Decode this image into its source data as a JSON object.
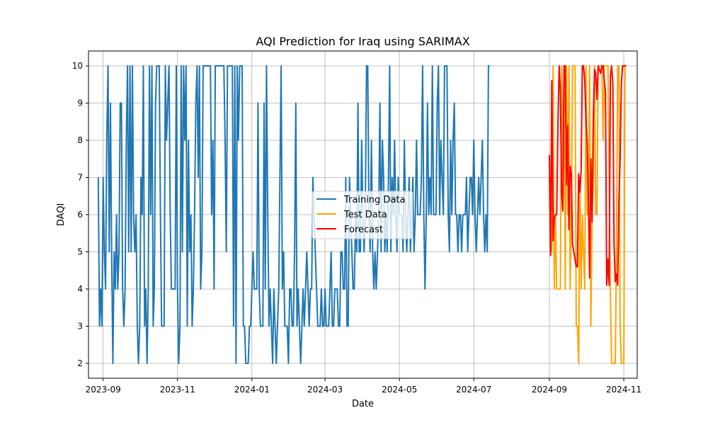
{
  "chart_data": {
    "type": "line",
    "title": "AQI Prediction for Iraq using SARIMAX",
    "xlabel": "Date",
    "ylabel": "DAQI",
    "xlim": [
      "2023-08-20",
      "2024-11-12"
    ],
    "ylim": [
      1.6,
      10.4
    ],
    "x_ticks": [
      "2023-09",
      "2023-11",
      "2024-01",
      "2024-03",
      "2024-05",
      "2024-07",
      "2024-09",
      "2024-11"
    ],
    "y_ticks": [
      2,
      3,
      4,
      5,
      6,
      7,
      8,
      9,
      10
    ],
    "grid": true,
    "legend_position": "center",
    "training_start": "2023-08-28",
    "test_start": "2024-09-01",
    "series": [
      {
        "name": "Training Data",
        "color": "#1f77b4",
        "values": [
          7,
          3,
          4,
          3,
          7,
          5,
          4,
          8,
          10,
          5,
          9,
          5,
          2,
          5,
          4,
          6,
          4,
          5,
          9,
          9,
          4,
          3,
          4,
          8,
          10,
          5,
          10,
          5,
          10,
          6,
          5,
          6,
          3,
          2,
          3,
          7,
          6,
          10,
          3,
          4,
          2,
          4,
          10,
          6,
          10,
          3,
          4,
          9,
          10,
          10,
          10,
          6,
          3,
          3,
          3,
          10,
          8,
          9,
          10,
          6,
          4,
          4,
          4,
          4,
          10,
          4,
          2,
          3,
          10,
          5,
          10,
          8,
          10,
          3,
          8,
          5,
          6,
          3,
          4,
          6,
          9,
          10,
          7,
          10,
          4,
          5,
          10,
          10,
          10,
          10,
          10,
          10,
          10,
          6,
          8,
          4,
          10,
          10,
          10,
          10,
          10,
          10,
          10,
          10,
          8,
          5,
          10,
          10,
          10,
          10,
          10,
          3,
          10,
          2,
          10,
          8,
          10,
          10,
          10,
          3,
          3,
          2,
          2,
          2,
          3,
          3,
          4,
          5,
          4,
          4,
          4,
          9,
          4,
          3,
          3,
          3,
          9,
          4,
          10,
          6,
          3,
          4,
          3,
          2,
          4,
          3,
          2,
          3,
          4,
          7,
          10,
          4,
          5,
          3,
          3,
          3,
          2,
          4,
          4,
          3,
          3,
          5,
          9,
          3,
          4,
          3,
          2,
          3,
          4,
          3,
          4,
          5,
          4,
          3,
          4,
          4,
          7,
          6,
          5,
          4,
          3,
          3,
          3,
          4,
          3,
          3,
          4,
          3,
          3,
          3,
          4,
          5,
          3,
          3,
          4,
          4,
          4,
          3,
          3,
          5,
          5,
          4,
          4,
          7,
          3,
          3,
          7,
          6,
          5,
          4,
          4,
          6,
          5,
          9,
          5,
          5,
          8,
          6,
          5,
          6,
          10,
          10,
          6,
          5,
          8,
          5,
          4,
          5,
          4,
          5,
          6,
          9,
          5,
          8,
          7,
          5,
          6,
          5,
          7,
          10,
          5,
          7,
          6,
          8,
          6,
          5,
          7,
          6,
          6,
          6,
          5,
          8,
          6,
          5,
          6,
          7,
          5,
          6,
          7,
          5,
          6,
          8,
          6,
          6,
          6,
          7,
          10,
          6,
          4,
          6,
          9,
          6,
          7,
          6,
          10,
          6,
          6,
          6,
          9,
          10,
          6,
          8,
          7,
          6,
          10,
          10,
          10,
          6,
          5,
          8,
          6,
          8,
          9,
          6,
          6,
          5,
          6,
          6,
          5,
          6,
          6,
          6,
          7,
          5,
          6,
          7,
          7,
          6,
          8,
          6,
          5,
          6,
          7,
          6,
          7,
          8,
          6,
          5,
          6,
          5,
          10,
          10
        ]
      },
      {
        "name": "Test Data",
        "color": "#ffa500",
        "values": [
          7,
          5,
          5,
          10,
          4,
          6,
          4,
          4,
          4,
          4,
          10,
          7,
          10,
          4,
          10,
          6,
          10,
          4,
          6,
          10,
          10,
          10,
          3,
          3,
          2,
          7,
          4,
          6,
          5,
          4,
          10,
          6,
          6,
          10,
          3,
          6,
          7,
          10,
          6,
          6,
          10,
          10,
          10,
          10,
          8,
          10,
          10,
          10,
          10,
          7,
          4,
          2,
          2,
          2,
          2,
          5,
          10,
          10,
          3,
          2,
          2,
          2,
          10,
          10
        ]
      },
      {
        "name": "Forecast",
        "color": "#ff0000",
        "values": [
          7.6,
          4.9,
          9.6,
          5.3,
          5.9,
          6,
          6,
          8.5,
          10,
          9.3,
          6.6,
          6.1,
          10,
          10,
          6.8,
          8.4,
          5.6,
          7.3,
          7.1,
          5.2,
          5,
          4.8,
          4.6,
          4.6,
          7.1,
          6.6,
          7.2,
          10,
          10,
          9.6,
          8.6,
          7.9,
          6.4,
          4.3,
          7.5,
          5.8,
          8.6,
          9.9,
          9.8,
          9.1,
          10,
          9.9,
          9.8,
          10,
          10,
          9.6,
          9.3,
          4.1,
          4.8,
          4.1,
          9.7,
          10,
          9.5,
          5.2,
          4.2,
          4.4,
          4.1,
          6.4,
          7.5,
          9.5,
          10,
          10,
          10,
          10
        ]
      }
    ]
  }
}
